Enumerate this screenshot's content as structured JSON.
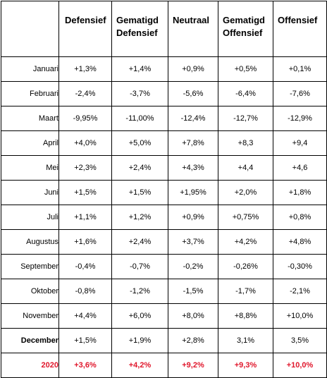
{
  "table": {
    "corner": "",
    "headers": [
      {
        "line1": "Defensief",
        "line2": ""
      },
      {
        "line1": "Gematigd",
        "line2": "Defensief"
      },
      {
        "line1": "Neutraal",
        "line2": ""
      },
      {
        "line1": "Gematigd",
        "line2": "Offensief"
      },
      {
        "line1": "Offensief",
        "line2": ""
      }
    ],
    "rows": [
      {
        "label": "Januari",
        "values": [
          "+1,3%",
          "+1,4%",
          "+0,9%",
          "+0,5%",
          "+0,1%"
        ]
      },
      {
        "label": "Februari",
        "values": [
          "-2,4%",
          "-3,7%",
          "-5,6%",
          "-6,4%",
          "-7,6%"
        ]
      },
      {
        "label": "Maart",
        "values": [
          "-9,95%",
          "-11,00%",
          "-12,4%",
          "-12,7%",
          "-12,9%"
        ]
      },
      {
        "label": "April",
        "values": [
          "+4,0%",
          "+5,0%",
          "+7,8%",
          "+8,3",
          "+9,4"
        ]
      },
      {
        "label": "Mei",
        "values": [
          "+2,3%",
          "+2,4%",
          "+4,3%",
          "+4,4",
          "+4,6"
        ]
      },
      {
        "label": "Juni",
        "values": [
          "+1,5%",
          "+1,5%",
          "+1,95%",
          "+2,0%",
          "+1,8%"
        ]
      },
      {
        "label": "Juli",
        "values": [
          "+1,1%",
          "+1,2%",
          "+0,9%",
          "+0,75%",
          "+0,8%"
        ]
      },
      {
        "label": "Augustus",
        "values": [
          "+1,6%",
          "+2,4%",
          "+3,7%",
          "+4,2%",
          "+4,8%"
        ]
      },
      {
        "label": "September",
        "values": [
          "-0,4%",
          "-0,7%",
          "-0,2%",
          "-0,26%",
          "-0,30%"
        ]
      },
      {
        "label": "Oktober",
        "values": [
          "-0,8%",
          "-1,2%",
          "-1,5%",
          "-1,7%",
          "-2,1%"
        ]
      },
      {
        "label": "November",
        "values": [
          "+4,4%",
          "+6,0%",
          "+8,0%",
          "+8,8%",
          "+10,0%"
        ]
      },
      {
        "label": "December",
        "values": [
          "+1,5%",
          "+1,9%",
          "+2,8%",
          "3,1%",
          "3,5%"
        ]
      }
    ],
    "total": {
      "label": "2020",
      "values": [
        "+3,6%",
        "+4,2%",
        "+9,2%",
        "+9,3%",
        "+10,0%"
      ]
    }
  },
  "colors": {
    "total_text": "#e0162b",
    "border": "#000000"
  }
}
